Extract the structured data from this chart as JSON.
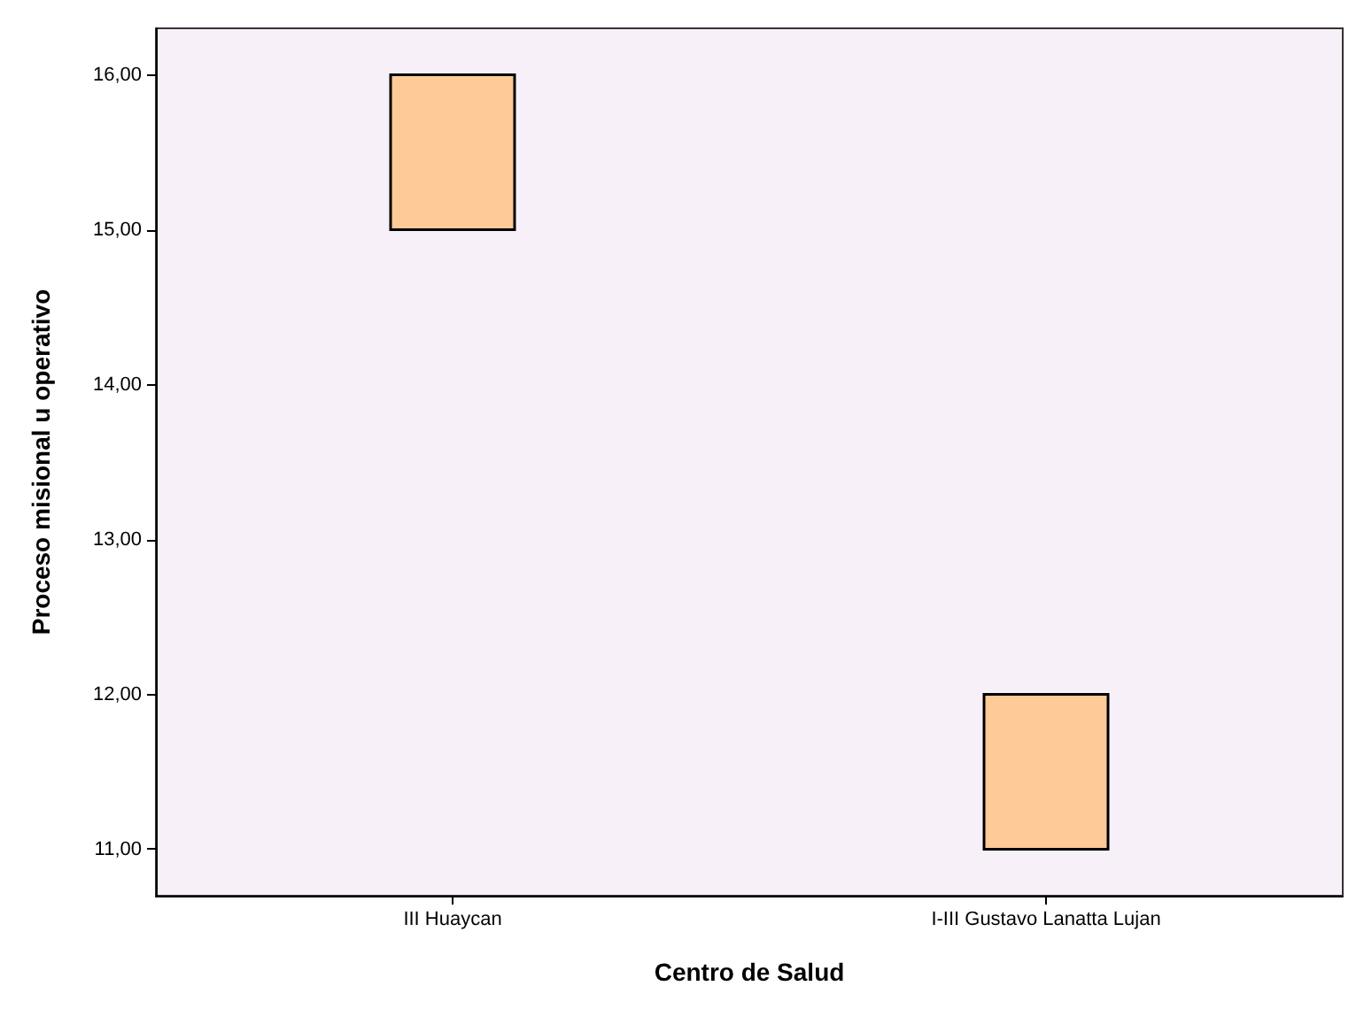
{
  "chart_data": {
    "type": "box",
    "xlabel": "Centro de Salud",
    "ylabel": "Proceso misional u operativo",
    "categories": [
      "III Huaycan",
      "I-III Gustavo Lanatta Lujan"
    ],
    "series": [
      {
        "color": "#fdca98",
        "boxes": [
          {
            "low": 15,
            "q1": 15,
            "median": 16,
            "q3": 16,
            "high": 16
          },
          {
            "low": 11,
            "q1": 11,
            "median": 12,
            "q3": 12,
            "high": 12
          }
        ]
      }
    ],
    "ylim": [
      10.7,
      16.3
    ],
    "yticks": [
      {
        "value": 11,
        "label": "11,00"
      },
      {
        "value": 12,
        "label": "12,00"
      },
      {
        "value": 13,
        "label": "13,00"
      },
      {
        "value": 14,
        "label": "14,00"
      },
      {
        "value": 15,
        "label": "15,00"
      },
      {
        "value": 16,
        "label": "16,00"
      }
    ]
  }
}
